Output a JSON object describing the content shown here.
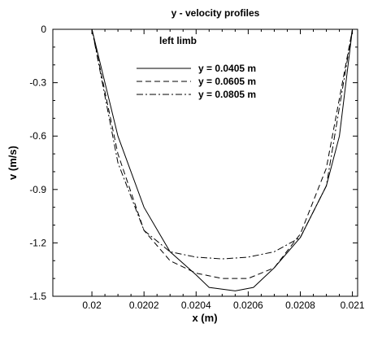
{
  "chart_data": {
    "type": "line",
    "title": "y - velocity profiles",
    "subtitle": "left limb",
    "xlabel": "x (m)",
    "ylabel": "v (m/s)",
    "xlim": [
      0.01985,
      0.02102
    ],
    "ylim": [
      -1.5,
      0
    ],
    "x_ticks": [
      0.02,
      0.0202,
      0.0204,
      0.0206,
      0.0208,
      0.021
    ],
    "x_tick_labels": [
      "0.02",
      "0.0202",
      "0.0204",
      "0.0206",
      "0.0208",
      "0.021"
    ],
    "y_ticks": [
      0,
      -0.3,
      -0.6,
      -0.9,
      -1.2,
      -1.5
    ],
    "y_tick_labels": [
      "0",
      "-0.3",
      "-0.6",
      "-0.9",
      "-1.2",
      "-1.5"
    ],
    "grid": false,
    "legend_position": "top-center",
    "series": [
      {
        "name": "y = 0.0405 m",
        "style": "solid",
        "color": "#000000",
        "points": [
          [
            0.02,
            0
          ],
          [
            0.0201,
            -0.6
          ],
          [
            0.0202,
            -1.0
          ],
          [
            0.0203,
            -1.25
          ],
          [
            0.0204,
            -1.38
          ],
          [
            0.02045,
            -1.45
          ],
          [
            0.02055,
            -1.47
          ],
          [
            0.02062,
            -1.45
          ],
          [
            0.0207,
            -1.34
          ],
          [
            0.0208,
            -1.17
          ],
          [
            0.0209,
            -0.88
          ],
          [
            0.02095,
            -0.6
          ],
          [
            0.021,
            0
          ]
        ]
      },
      {
        "name": "y = 0.0605 m",
        "style": "dashed",
        "color": "#000000",
        "points": [
          [
            0.02,
            0
          ],
          [
            0.0201,
            -0.7
          ],
          [
            0.0202,
            -1.13
          ],
          [
            0.0203,
            -1.3
          ],
          [
            0.0204,
            -1.37
          ],
          [
            0.0205,
            -1.4
          ],
          [
            0.0206,
            -1.4
          ],
          [
            0.0207,
            -1.34
          ],
          [
            0.0208,
            -1.15
          ],
          [
            0.0209,
            -0.78
          ],
          [
            0.021,
            0
          ]
        ]
      },
      {
        "name": "y = 0.0805 m",
        "style": "dashdot",
        "color": "#000000",
        "points": [
          [
            0.02,
            0
          ],
          [
            0.0201,
            -0.75
          ],
          [
            0.0202,
            -1.13
          ],
          [
            0.0203,
            -1.25
          ],
          [
            0.0204,
            -1.28
          ],
          [
            0.0205,
            -1.29
          ],
          [
            0.0206,
            -1.28
          ],
          [
            0.0207,
            -1.25
          ],
          [
            0.0208,
            -1.17
          ],
          [
            0.0209,
            -0.88
          ],
          [
            0.021,
            0
          ]
        ]
      }
    ]
  }
}
